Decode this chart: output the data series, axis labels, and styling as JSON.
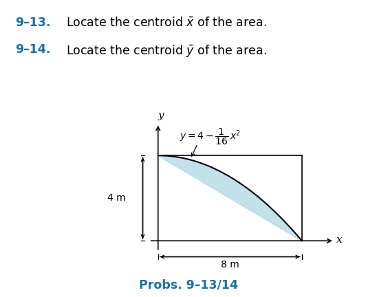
{
  "x_max": 8,
  "y_max": 4,
  "curve_color": "#000000",
  "fill_color": "#b8dce8",
  "fill_alpha": 0.85,
  "label_color": "#1a6fa8",
  "background_color": "#ffffff",
  "num1": "9–13.",
  "text1": "Locate the centroid $\\bar{x}$ of the area.",
  "num2": "9–14.",
  "text2": "Locate the centroid $\\bar{y}$ of the area.",
  "probs_label": "Probs. 9–13/14"
}
